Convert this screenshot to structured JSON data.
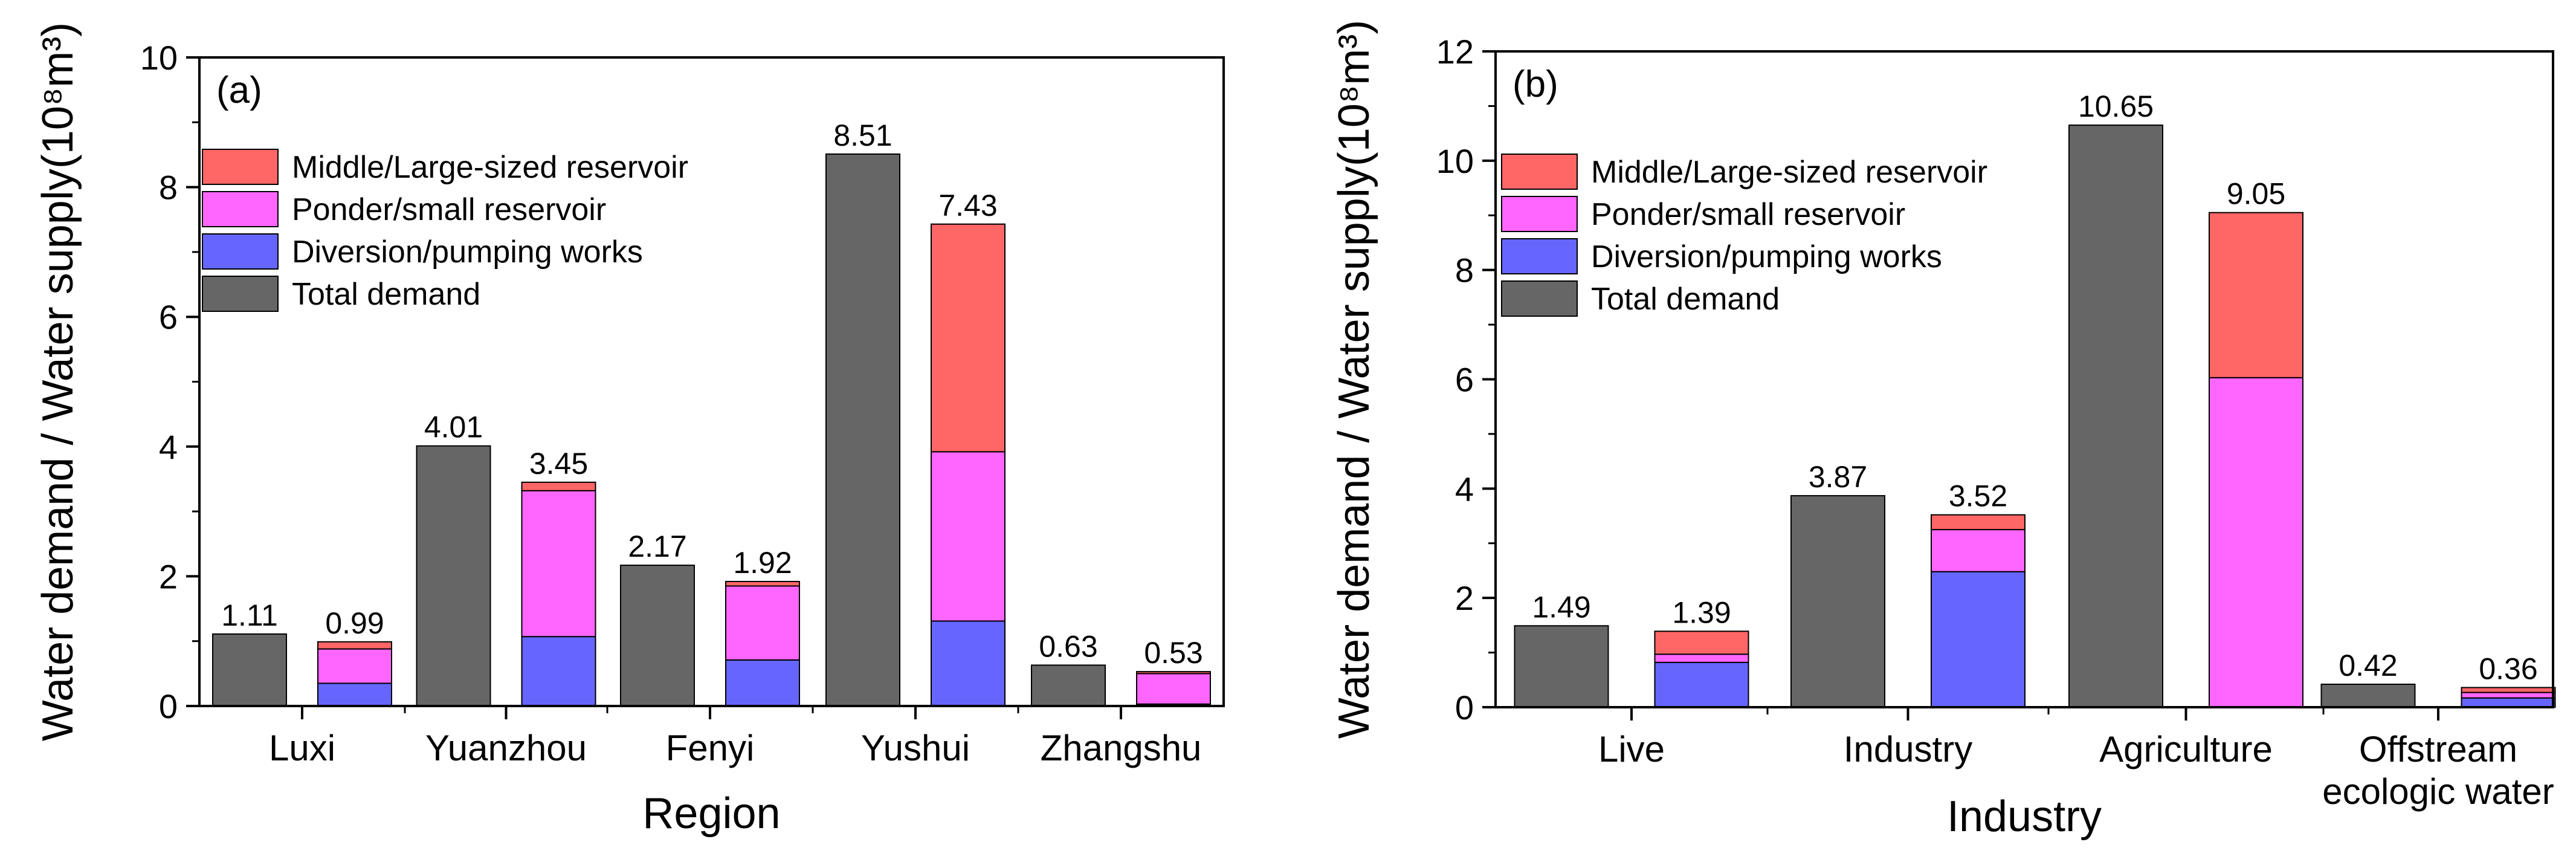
{
  "colors": {
    "middle_large": "#FF6666",
    "ponder_small": "#FF66FF",
    "diversion": "#6666FF",
    "total": "#666666",
    "axis": "#000000"
  },
  "legend": [
    {
      "key": "middle_large",
      "label": "Middle/Large-sized reservoir"
    },
    {
      "key": "ponder_small",
      "label": "Ponder/small reservoir"
    },
    {
      "key": "diversion",
      "label": "Diversion/pumping works"
    },
    {
      "key": "total",
      "label": "Total demand"
    }
  ],
  "chart_data": [
    {
      "type": "bar",
      "panel_label": "(a)",
      "xlabel": "Region",
      "ylabel": "Water demand / Water supply(10⁸m³)",
      "ylim": [
        0,
        10
      ],
      "yticks": [
        0,
        2,
        4,
        6,
        8,
        10
      ],
      "legend_position": "top-left",
      "categories": [
        "Luxi",
        "Yuanzhou",
        "Fenyi",
        "Yushui",
        "Zhangshu"
      ],
      "total_demand": [
        1.11,
        4.01,
        2.17,
        8.51,
        0.63
      ],
      "supply_total": [
        0.99,
        3.45,
        1.92,
        7.43,
        0.53
      ],
      "supply_series": [
        {
          "name": "Diversion/pumping works",
          "key": "diversion",
          "values": [
            0.35,
            1.07,
            0.71,
            1.31,
            0.03
          ]
        },
        {
          "name": "Ponder/small reservoir",
          "key": "ponder_small",
          "values": [
            0.53,
            2.25,
            1.14,
            2.61,
            0.47
          ]
        },
        {
          "name": "Middle/Large-sized reservoir",
          "key": "middle_large",
          "values": [
            0.11,
            0.13,
            0.07,
            3.51,
            0.03
          ]
        }
      ],
      "demand_labels": [
        "1.11",
        "4.01",
        "2.17",
        "8.51",
        "0.63"
      ],
      "supply_labels": [
        "0.99",
        "3.45",
        "1.92",
        "7.43",
        "0.53"
      ]
    },
    {
      "type": "bar",
      "panel_label": "(b)",
      "xlabel": "Industry",
      "ylabel": "Water demand / Water supply(10⁸m³)",
      "ylim": [
        0,
        12
      ],
      "yticks": [
        0,
        2,
        4,
        6,
        8,
        10,
        12
      ],
      "legend_position": "top-left",
      "categories": [
        "Live",
        "Industry",
        "Agriculture",
        "Offstream\necologic water"
      ],
      "total_demand": [
        1.49,
        3.87,
        10.65,
        0.42
      ],
      "supply_total": [
        1.39,
        3.52,
        9.05,
        0.36
      ],
      "supply_series": [
        {
          "name": "Diversion/pumping works",
          "key": "diversion",
          "values": [
            0.82,
            2.48,
            0.0,
            0.17
          ]
        },
        {
          "name": "Ponder/small reservoir",
          "key": "ponder_small",
          "values": [
            0.15,
            0.77,
            6.03,
            0.1
          ]
        },
        {
          "name": "Middle/Large-sized reservoir",
          "key": "middle_large",
          "values": [
            0.42,
            0.27,
            3.02,
            0.09
          ]
        }
      ],
      "demand_labels": [
        "1.49",
        "3.87",
        "10.65",
        "0.42"
      ],
      "supply_labels": [
        "1.39",
        "3.52",
        "9.05",
        "0.36"
      ]
    }
  ]
}
